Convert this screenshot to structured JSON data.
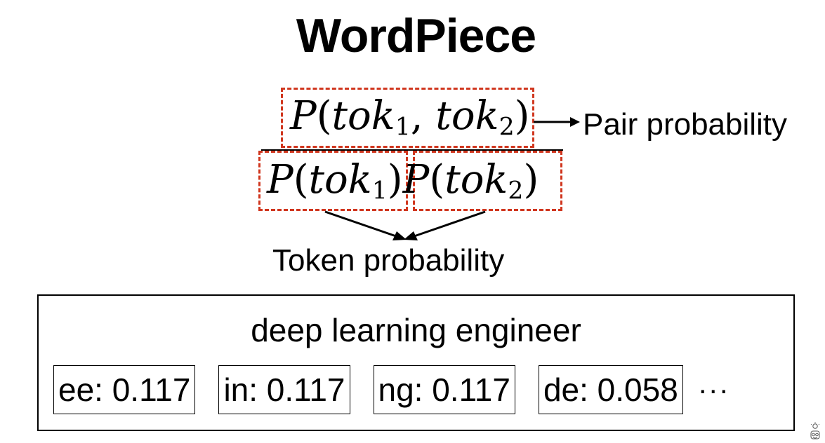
{
  "title": "WordPiece",
  "formula": {
    "pair": {
      "fn": "P",
      "tok": "tok",
      "sub1": "1",
      "sub2": "2"
    },
    "denominator": {
      "fn": "P",
      "tok": "tok",
      "sub1": "1",
      "sub2": "2"
    }
  },
  "labels": {
    "pair": "Pair probability",
    "token": "Token probability"
  },
  "example": {
    "phrase": "deep learning engineer",
    "tokens": [
      {
        "text": "ee: 0.117"
      },
      {
        "text": "in: 0.117"
      },
      {
        "text": "ng: 0.117"
      },
      {
        "text": "de: 0.058"
      }
    ],
    "ellipsis": "···"
  },
  "colors": {
    "highlight": "#d0361e",
    "ink": "#000000",
    "background": "#ffffff"
  },
  "icons": {
    "corner": "lightbulb-person-icon"
  }
}
